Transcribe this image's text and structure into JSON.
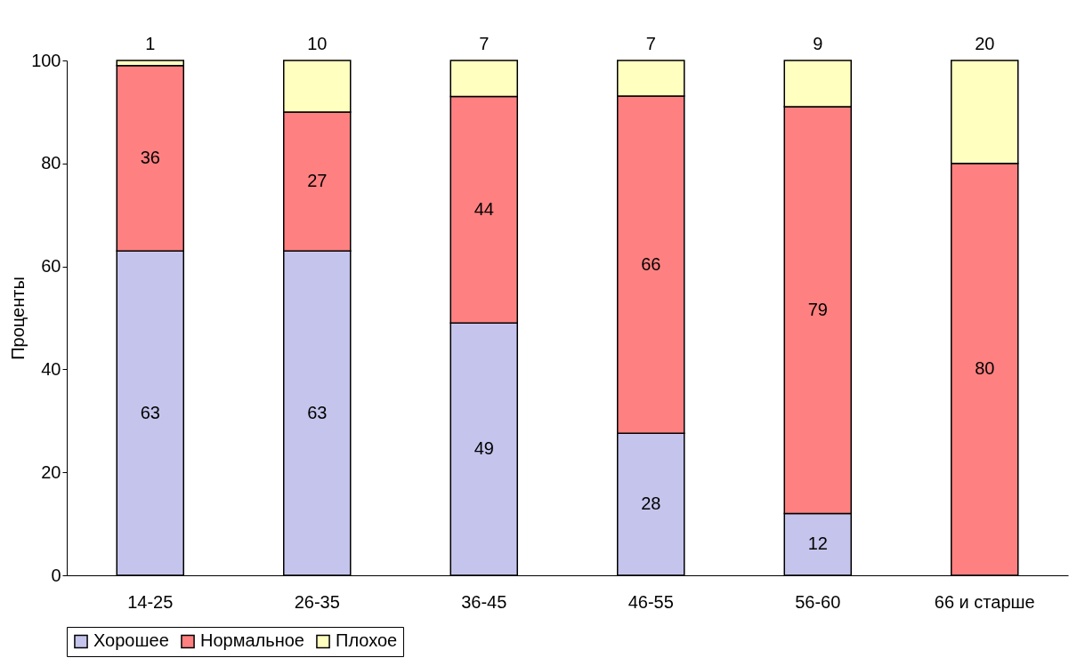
{
  "chart_data": {
    "type": "bar",
    "stacked": true,
    "ylabel": "Проценты",
    "categories": [
      "14-25",
      "26-35",
      "36-45",
      "46-55",
      "56-60",
      "66 и старше"
    ],
    "series": [
      {
        "name": "Хорошее",
        "color": "#c4c4ec",
        "values": [
          63,
          63,
          49,
          27.6,
          12,
          null
        ],
        "value_labels": [
          "63",
          "63",
          "49",
          "28",
          "12",
          null
        ]
      },
      {
        "name": "Нормальное",
        "color": "#ff8080",
        "values": [
          36,
          27,
          44,
          65.5,
          79,
          80
        ],
        "value_labels": [
          "36",
          "27",
          "44",
          "66",
          "79",
          "80"
        ]
      },
      {
        "name": "Плохое",
        "color": "#ffffc0",
        "values": [
          1,
          10,
          7,
          6.9,
          9,
          20
        ],
        "value_labels": [
          "1",
          "10",
          "7",
          "7",
          "9",
          "20"
        ]
      }
    ],
    "ylim": [
      0,
      100
    ],
    "yticks": [
      0,
      20,
      40,
      60,
      80,
      100
    ],
    "grid": false,
    "legend": "bottom"
  }
}
